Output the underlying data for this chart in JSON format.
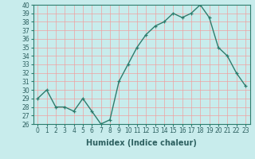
{
  "x": [
    0,
    1,
    2,
    3,
    4,
    5,
    6,
    7,
    8,
    9,
    10,
    11,
    12,
    13,
    14,
    15,
    16,
    17,
    18,
    19,
    20,
    21,
    22,
    23
  ],
  "y": [
    29,
    30,
    28,
    28,
    27.5,
    29,
    27.5,
    26,
    26.5,
    31,
    33,
    35,
    36.5,
    37.5,
    38,
    39,
    38.5,
    39,
    40,
    38.5,
    35,
    34,
    32,
    30.5
  ],
  "line_color": "#2d7d6d",
  "marker_color": "#2d7d6d",
  "bg_color": "#c8ecec",
  "grid_major_color": "#f0a0a0",
  "grid_minor_color": "#e8d0d0",
  "xlabel": "Humidex (Indice chaleur)",
  "ylim": [
    26,
    40
  ],
  "xlim_min": -0.5,
  "xlim_max": 23.5,
  "yticks": [
    26,
    27,
    28,
    29,
    30,
    31,
    32,
    33,
    34,
    35,
    36,
    37,
    38,
    39,
    40
  ],
  "xticks": [
    0,
    1,
    2,
    3,
    4,
    5,
    6,
    7,
    8,
    9,
    10,
    11,
    12,
    13,
    14,
    15,
    16,
    17,
    18,
    19,
    20,
    21,
    22,
    23
  ],
  "font_color": "#2d6060",
  "spine_color": "#2d7d6d",
  "axis_label_fontsize": 7.0,
  "tick_fontsize": 5.5,
  "line_width": 1.0,
  "marker_size": 3.5
}
